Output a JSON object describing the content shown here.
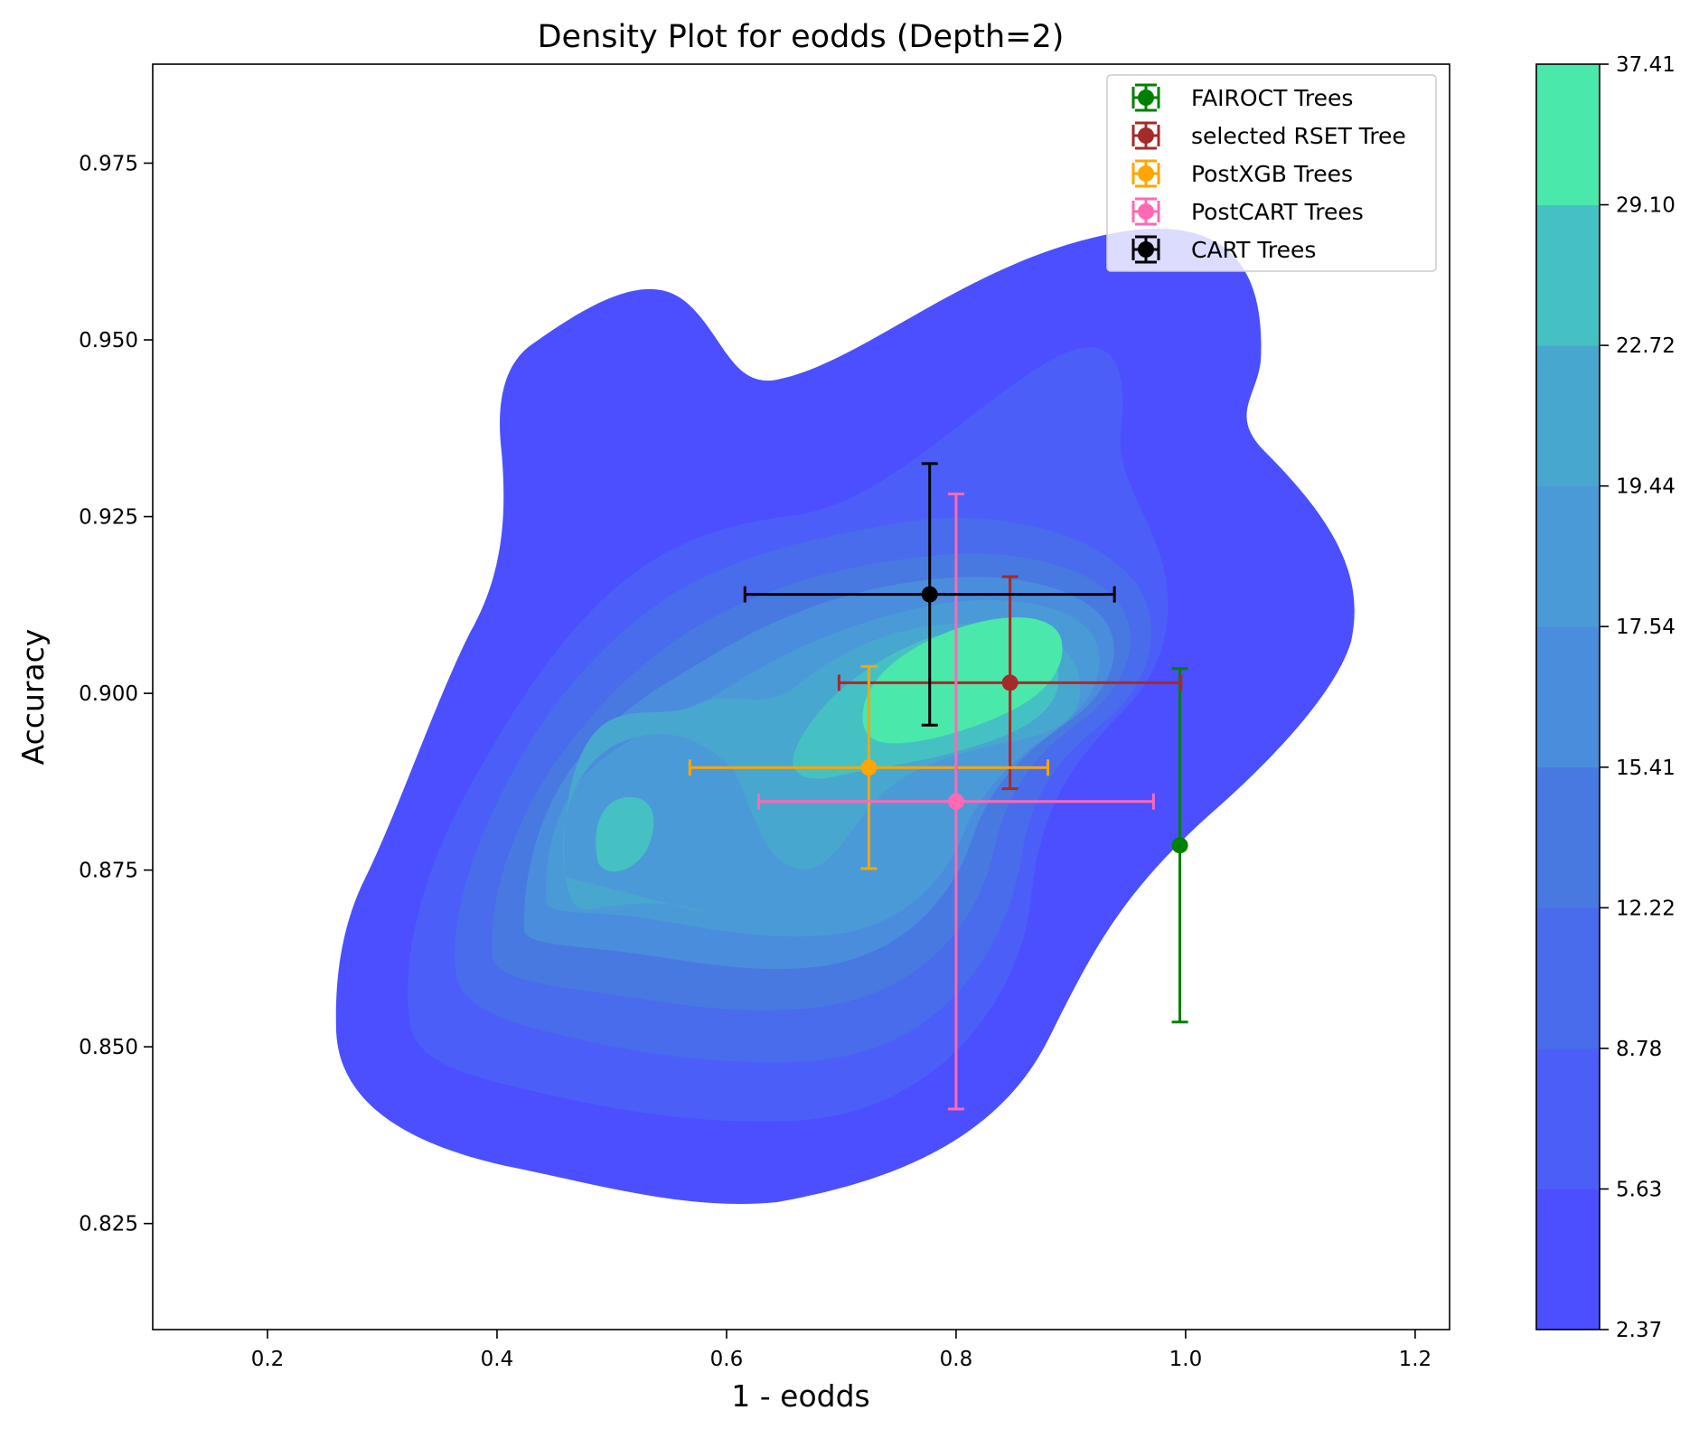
{
  "chart_data": {
    "type": "scatter",
    "title": "Density Plot for eodds (Depth=2)",
    "xlabel": "1 - eodds",
    "ylabel": "Accuracy",
    "xlim": [
      0.1,
      1.23
    ],
    "ylim": [
      0.81,
      0.989
    ],
    "x_ticks": [
      0.2,
      0.4,
      0.6,
      0.8,
      1.0,
      1.2
    ],
    "x_tick_labels": [
      "0.2",
      "0.4",
      "0.6",
      "0.8",
      "1.0",
      "1.2"
    ],
    "y_ticks": [
      0.825,
      0.85,
      0.875,
      0.9,
      0.925,
      0.95,
      0.975
    ],
    "y_tick_labels": [
      "0.825",
      "0.850",
      "0.875",
      "0.900",
      "0.925",
      "0.950",
      "0.975"
    ],
    "grid": false,
    "legend_position": "top-right",
    "series": [
      {
        "name": "FAIROCT Trees",
        "color": "#008000",
        "x": 0.995,
        "y": 0.8785,
        "xerr": 0.0,
        "yerr": 0.025
      },
      {
        "name": "selected RSET Tree",
        "color": "#a52a2a",
        "x": 0.847,
        "y": 0.9015,
        "xerr": 0.149,
        "yerr": 0.015
      },
      {
        "name": "PostXGB Trees",
        "color": "#ffa500",
        "x": 0.724,
        "y": 0.8895,
        "xerr": 0.156,
        "yerr": 0.0143
      },
      {
        "name": "PostCART Trees",
        "color": "#ff69b4",
        "x": 0.8,
        "y": 0.8847,
        "xerr": 0.172,
        "yerr": 0.0435
      },
      {
        "name": "CART Trees",
        "color": "#000000",
        "x": 0.777,
        "y": 0.914,
        "xerr": 0.161,
        "yerr": 0.0185
      }
    ],
    "density": {
      "levels": [
        "2.37",
        "5.63",
        "8.78",
        "12.22",
        "15.41",
        "17.54",
        "19.44",
        "22.72",
        "29.10",
        "37.41"
      ],
      "colors": [
        "#4b4fff",
        "#4b5ff8",
        "#486cec",
        "#4879e0",
        "#4a8ddc",
        "#4b9ad8",
        "#48a7ce",
        "#46c1c3",
        "#4ae8ab"
      ]
    }
  }
}
